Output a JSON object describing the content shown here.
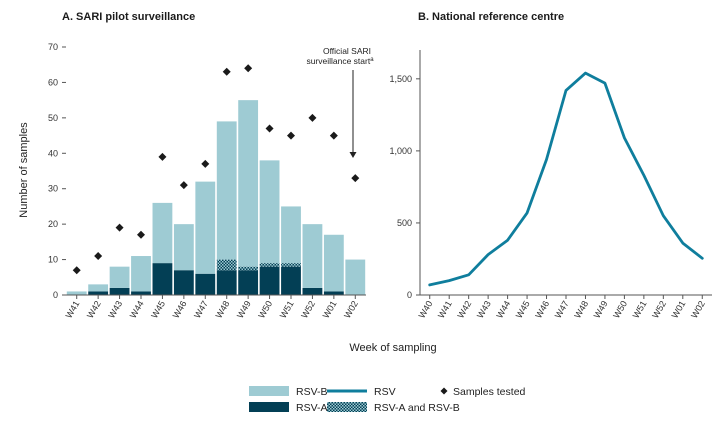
{
  "colors": {
    "rsv_b": "#9ecbd3",
    "rsv_a": "#033f55",
    "rsv_line": "#0f7e9d",
    "marker": "#1a1a1a",
    "axis": "#555555"
  },
  "xlabel": "Week of sampling",
  "chart_data": [
    {
      "type": "bar",
      "title": "A. SARI pilot surveillance",
      "ylabel": "Number of samples",
      "ylim": [
        0,
        70
      ],
      "yticks": [
        0,
        10,
        20,
        30,
        40,
        50,
        60,
        70
      ],
      "categories": [
        "W41",
        "W42",
        "W43",
        "W44",
        "W45",
        "W46",
        "W47",
        "W48",
        "W49",
        "W50",
        "W51",
        "W52",
        "W01",
        "W02"
      ],
      "series": [
        {
          "name": "RSV-A",
          "values": [
            0,
            1,
            2,
            1,
            9,
            7,
            6,
            7,
            7,
            8,
            8,
            2,
            1,
            0
          ]
        },
        {
          "name": "RSV-A and RSV-B",
          "values": [
            0,
            0,
            0,
            0,
            0,
            0,
            0,
            3,
            1,
            1,
            1,
            0,
            0,
            0
          ]
        },
        {
          "name": "RSV-B",
          "values": [
            1,
            2,
            6,
            10,
            17,
            13,
            26,
            39,
            47,
            29,
            16,
            18,
            16,
            10
          ]
        }
      ],
      "samples_tested": {
        "name": "Samples tested",
        "values": [
          7,
          11,
          19,
          17,
          39,
          31,
          37,
          63,
          64,
          47,
          45,
          50,
          45,
          33
        ]
      },
      "annotation": {
        "line1": "Official SARI",
        "line2": "surveillance start",
        "superscript": "a",
        "at_category": "W02"
      }
    },
    {
      "type": "line",
      "title": "B. National reference centre",
      "ylim": [
        0,
        1700
      ],
      "yticks": [
        0,
        500,
        1000,
        1500
      ],
      "ytick_labels": [
        "0",
        "500",
        "1,000",
        "1,500"
      ],
      "categories": [
        "W40",
        "W41",
        "W42",
        "W43",
        "W44",
        "W45",
        "W46",
        "W47",
        "W48",
        "W49",
        "W50",
        "W51",
        "W52",
        "W01",
        "W02"
      ],
      "series": [
        {
          "name": "RSV",
          "values": [
            70,
            100,
            140,
            280,
            380,
            570,
            940,
            1420,
            1540,
            1470,
            1090,
            830,
            550,
            360,
            255
          ]
        }
      ]
    }
  ],
  "legend": {
    "rsv_b": "RSV-B",
    "rsv_a": "RSV-A",
    "rsv": "RSV",
    "rsv_ab": "RSV-A and RSV-B",
    "samples": "Samples tested"
  }
}
